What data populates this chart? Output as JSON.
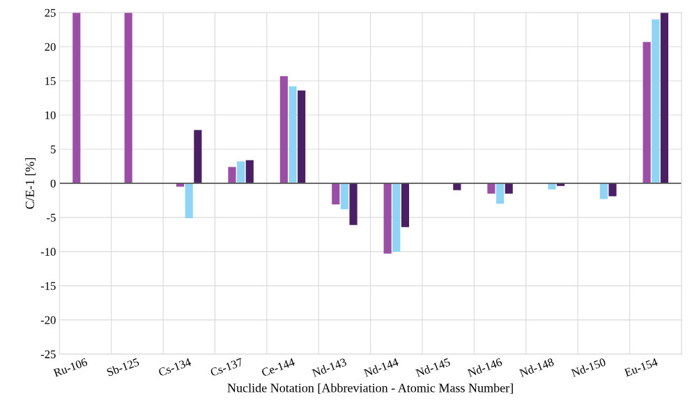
{
  "chart_data": {
    "type": "bar",
    "xlabel": "Nuclide Notation [Abbreviation - Atomic Mass Number]",
    "ylabel": "C/E-1 [%]",
    "categories": [
      "Ru-106",
      "Sb-125",
      "Cs-134",
      "Cs-137",
      "Ce-144",
      "Nd-143",
      "Nd-144",
      "Nd-145",
      "Nd-146",
      "Nd-148",
      "Nd-150",
      "Eu-154"
    ],
    "series": [
      {
        "color": "#9b4ea6",
        "values": [
          25,
          25,
          -0.5,
          2.4,
          15.7,
          -3.1,
          -10.3,
          null,
          -1.5,
          null,
          null,
          20.7
        ]
      },
      {
        "color": "#8fd4f5",
        "values": [
          null,
          null,
          -5.1,
          3.2,
          14.2,
          -3.8,
          -10.0,
          null,
          -3.0,
          -0.9,
          -2.3,
          24.0
        ]
      },
      {
        "color": "#4b1f63",
        "values": [
          null,
          null,
          7.8,
          3.4,
          13.6,
          -6.1,
          -6.4,
          -1.0,
          -1.5,
          -0.4,
          -1.9,
          25
        ]
      }
    ],
    "ylim": [
      -25,
      25
    ],
    "yticks": [
      -25,
      -20,
      -15,
      -10,
      -5,
      0,
      5,
      10,
      15,
      20,
      25
    ],
    "ref_lines": [
      {
        "axis": "y",
        "value": 0,
        "color": "#555555"
      }
    ],
    "grid": true
  }
}
